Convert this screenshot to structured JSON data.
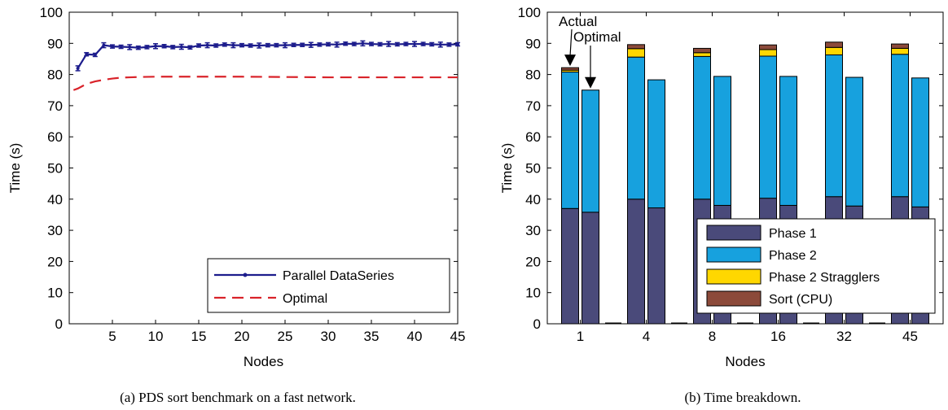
{
  "chart_data": [
    {
      "type": "line",
      "caption": "(a)  PDS sort benchmark on a fast network.",
      "xlabel": "Nodes",
      "ylabel": "Time (s)",
      "xlim": [
        0,
        45
      ],
      "ylim": [
        0,
        100
      ],
      "xticks": [
        5,
        10,
        15,
        20,
        25,
        30,
        35,
        40,
        45
      ],
      "yticks": [
        0,
        10,
        20,
        30,
        40,
        50,
        60,
        70,
        80,
        90,
        100
      ],
      "grid": false,
      "legend_position": "bottom-right",
      "series": [
        {
          "name": "Parallel DataSeries",
          "color": "#1c1c8c",
          "style": "solid-with-markers-and-error-bars",
          "x": [
            1,
            2,
            3,
            4,
            5,
            6,
            7,
            8,
            9,
            10,
            11,
            12,
            13,
            14,
            15,
            16,
            17,
            18,
            19,
            20,
            21,
            22,
            23,
            24,
            25,
            26,
            27,
            28,
            29,
            30,
            31,
            32,
            33,
            34,
            35,
            36,
            37,
            38,
            39,
            40,
            41,
            42,
            43,
            44,
            45
          ],
          "y": [
            82,
            86.5,
            86.3,
            89.4,
            89,
            88.9,
            88.8,
            88.6,
            88.8,
            89.1,
            89.1,
            88.8,
            88.9,
            88.7,
            89.3,
            89.4,
            89.3,
            89.6,
            89.4,
            89.4,
            89.3,
            89.3,
            89.4,
            89.4,
            89.4,
            89.5,
            89.5,
            89.5,
            89.6,
            89.7,
            89.6,
            89.9,
            89.8,
            90,
            89.8,
            89.7,
            89.8,
            89.7,
            89.8,
            89.8,
            89.8,
            89.7,
            89.6,
            89.6,
            89.7
          ]
        },
        {
          "name": "Optimal",
          "color": "#d9232a",
          "style": "dashed",
          "x": [
            0.5,
            1,
            2,
            3,
            4,
            5,
            6,
            7,
            8,
            10,
            12,
            15,
            20,
            25,
            30,
            35,
            40,
            45
          ],
          "y": [
            75,
            75.5,
            77,
            77.8,
            78.3,
            78.7,
            79,
            79.1,
            79.2,
            79.3,
            79.3,
            79.3,
            79.3,
            79.2,
            79.1,
            79.1,
            79.1,
            79.1
          ]
        }
      ]
    },
    {
      "type": "bar",
      "stacked": true,
      "caption": "(b)  Time breakdown.",
      "xlabel": "Nodes",
      "ylabel": "Time (s)",
      "ylim": [
        0,
        100
      ],
      "yticks": [
        0,
        10,
        20,
        30,
        40,
        50,
        60,
        70,
        80,
        90,
        100
      ],
      "categories": [
        "1",
        "4",
        "8",
        "16",
        "32",
        "45"
      ],
      "bar_labels": [
        "Actual",
        "Optimal"
      ],
      "legend_position": "bottom-right",
      "series": [
        {
          "name": "Phase 1",
          "color": "#4a4a7a",
          "actual": [
            37,
            40,
            40,
            40.3,
            40.8,
            40.8
          ],
          "optimal": [
            35.8,
            37.2,
            38,
            38,
            37.8,
            37.5
          ]
        },
        {
          "name": "Phase 2",
          "color": "#17a1de",
          "actual": [
            43.8,
            45.6,
            45.8,
            45.6,
            45.5,
            45.7
          ],
          "optimal": [
            39.2,
            41.1,
            41.4,
            41.4,
            41.3,
            41.4
          ]
        },
        {
          "name": "Phase 2 Stragglers",
          "color": "#ffd700",
          "actual": [
            0.6,
            2.7,
            1.2,
            2.1,
            2.4,
            1.9
          ],
          "optimal": [
            0,
            0,
            0,
            0,
            0,
            0
          ]
        },
        {
          "name": "Sort (CPU)",
          "color": "#8c4a3a",
          "actual": [
            0.8,
            1.3,
            1.4,
            1.5,
            1.7,
            1.4
          ],
          "optimal": [
            0,
            0,
            0,
            0,
            0,
            0
          ]
        }
      ]
    }
  ]
}
